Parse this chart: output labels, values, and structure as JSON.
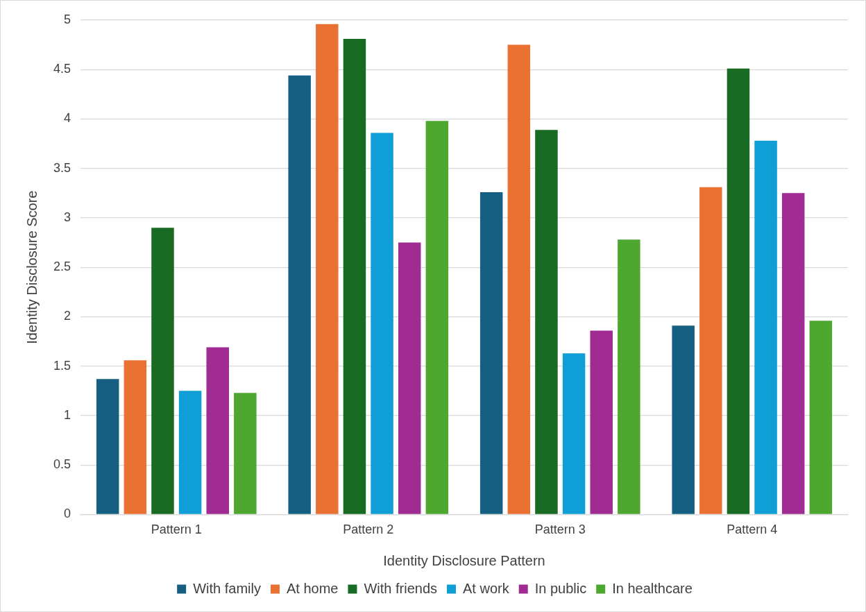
{
  "chart_data": {
    "type": "bar",
    "xlabel": "Identity Disclosure Pattern",
    "ylabel": "Identity Disclosure Score",
    "categories": [
      "Pattern 1",
      "Pattern 2",
      "Pattern 3",
      "Pattern 4"
    ],
    "series": [
      {
        "name": "With family",
        "color": "#156082",
        "values": [
          1.37,
          4.44,
          3.26,
          1.91
        ]
      },
      {
        "name": "At home",
        "color": "#e97132",
        "values": [
          1.56,
          4.96,
          4.75,
          3.31
        ]
      },
      {
        "name": "With friends",
        "color": "#196b24",
        "values": [
          2.9,
          4.81,
          3.89,
          4.51
        ]
      },
      {
        "name": "At work",
        "color": "#0f9ed5",
        "values": [
          1.25,
          3.86,
          1.63,
          3.78
        ]
      },
      {
        "name": "In public",
        "color": "#a02b93",
        "values": [
          1.69,
          2.75,
          1.86,
          3.25
        ]
      },
      {
        "name": "In healthcare",
        "color": "#4ea72e",
        "values": [
          1.23,
          3.98,
          2.78,
          1.96
        ]
      }
    ],
    "ylim": [
      0,
      5
    ],
    "yticks": [
      0,
      0.5,
      1,
      1.5,
      2,
      2.5,
      3,
      3.5,
      4,
      4.5,
      5
    ],
    "grid": "y",
    "legend": "bottom"
  }
}
